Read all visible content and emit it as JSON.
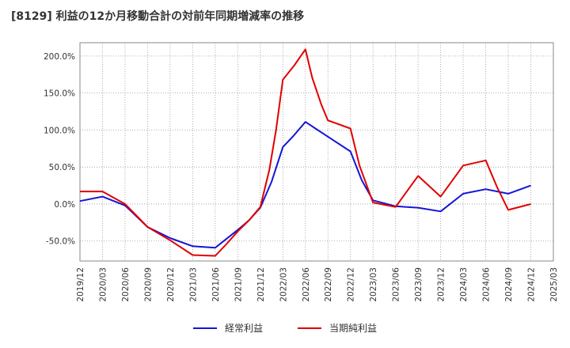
{
  "chart_data": {
    "type": "line",
    "title": "[8129]  利益の12か月移動合計の対前年同期増減率の推移",
    "xlabel": "",
    "ylabel": "",
    "ylim": [
      -77,
      218
    ],
    "y_ticks": [
      "200.0%",
      "150.0%",
      "100.0%",
      "50.0%",
      "0.0%",
      "-50.0%"
    ],
    "y_tick_values": [
      200,
      150,
      100,
      50,
      0,
      -50
    ],
    "categories": [
      "2019/12",
      "2020/03",
      "2020/06",
      "2020/09",
      "2020/12",
      "2021/03",
      "2021/06",
      "2021/09",
      "2021/12",
      "2022/03",
      "2022/06",
      "2022/09",
      "2022/12",
      "2023/03",
      "2023/06",
      "2023/09",
      "2023/12",
      "2024/03",
      "2024/06",
      "2024/09",
      "2024/12",
      "2025/03"
    ],
    "grid": true,
    "legend_position": "bottom",
    "series": [
      {
        "name": "経常利益",
        "color": "#1515d6",
        "points": [
          [
            0,
            4
          ],
          [
            1,
            10
          ],
          [
            2,
            -2
          ],
          [
            3,
            -31
          ],
          [
            4,
            -46
          ],
          [
            5,
            -57
          ],
          [
            6,
            -59
          ],
          [
            7,
            -35
          ],
          [
            7.5,
            -22
          ],
          [
            8,
            -5
          ],
          [
            8.5,
            30
          ],
          [
            9,
            77
          ],
          [
            9.5,
            93
          ],
          [
            10,
            111
          ],
          [
            10.5,
            101
          ],
          [
            11,
            91
          ],
          [
            12,
            71
          ],
          [
            12.5,
            32
          ],
          [
            13,
            5
          ],
          [
            14,
            -3
          ],
          [
            15,
            -5
          ],
          [
            16,
            -10
          ],
          [
            17,
            14
          ],
          [
            18,
            20
          ],
          [
            19,
            14
          ],
          [
            20,
            25
          ]
        ]
      },
      {
        "name": "当期純利益",
        "color": "#e00000",
        "points": [
          [
            0,
            17
          ],
          [
            1,
            17
          ],
          [
            2,
            0
          ],
          [
            3,
            -31
          ],
          [
            4,
            -49
          ],
          [
            5,
            -69
          ],
          [
            6,
            -70
          ],
          [
            6.5,
            -54
          ],
          [
            7,
            -37
          ],
          [
            7.5,
            -22
          ],
          [
            8,
            -4
          ],
          [
            8.4,
            46
          ],
          [
            8.7,
            100
          ],
          [
            9,
            168
          ],
          [
            9.5,
            187
          ],
          [
            10,
            209
          ],
          [
            10.3,
            171
          ],
          [
            10.7,
            135
          ],
          [
            11,
            113
          ],
          [
            12,
            102
          ],
          [
            12.4,
            52
          ],
          [
            13,
            2
          ],
          [
            14,
            -4
          ],
          [
            15,
            38
          ],
          [
            16,
            10
          ],
          [
            17,
            52
          ],
          [
            18,
            59
          ],
          [
            18.5,
            23
          ],
          [
            19,
            -8
          ],
          [
            20,
            0
          ]
        ]
      }
    ]
  }
}
